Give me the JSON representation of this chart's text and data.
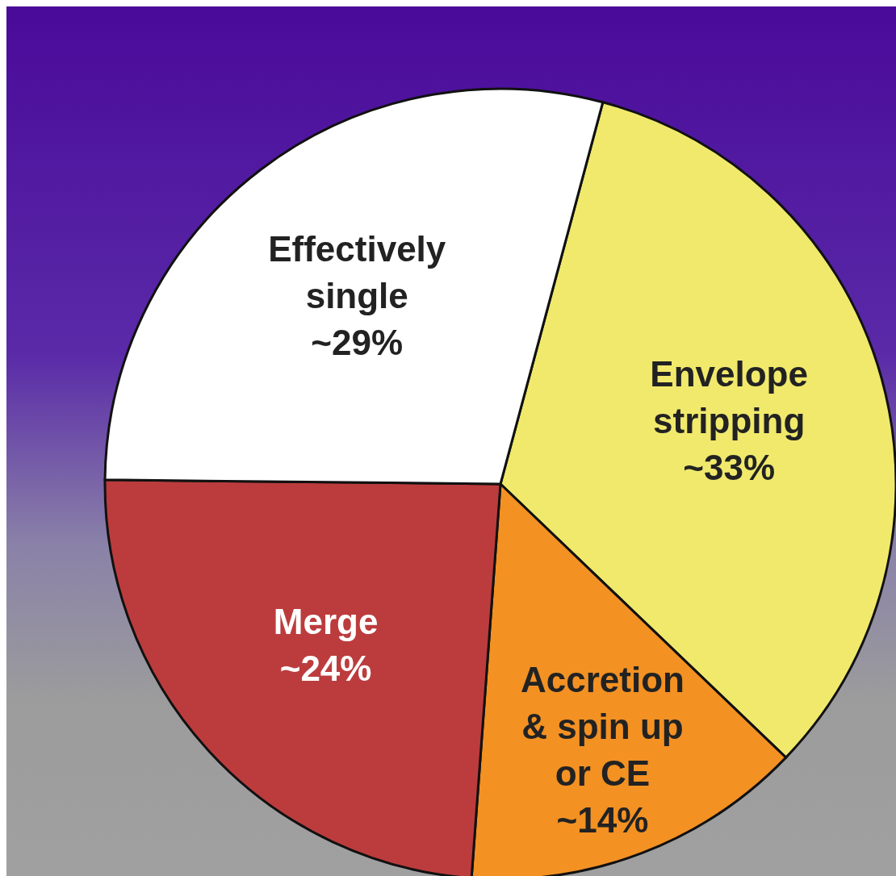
{
  "chart_data": {
    "type": "pie",
    "categories": [
      "Envelope stripping",
      "Accretion & spin up or CE",
      "Merge",
      "Effectively single"
    ],
    "values": [
      33,
      14,
      24,
      29
    ],
    "value_labels": [
      "~33%",
      "~14%",
      "~24%",
      "~29%"
    ],
    "colors": [
      "#f0e96c",
      "#f39123",
      "#bc3c3d",
      "#ffffff"
    ]
  }
}
